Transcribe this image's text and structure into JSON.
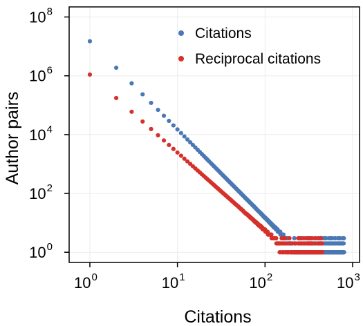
{
  "chart_data": {
    "type": "scatter",
    "title": "",
    "xlabel": "Citations",
    "ylabel": "Author pairs",
    "xscale": "log",
    "yscale": "log",
    "xlim": [
      0.58,
      1200
    ],
    "ylim": [
      0.45,
      220000000.0
    ],
    "xticks": [
      {
        "base": "10",
        "exp": "0",
        "value": 1
      },
      {
        "base": "10",
        "exp": "1",
        "value": 10
      },
      {
        "base": "10",
        "exp": "2",
        "value": 100
      },
      {
        "base": "10",
        "exp": "3",
        "value": 1000
      }
    ],
    "yticks": [
      {
        "base": "10",
        "exp": "0",
        "value": 1
      },
      {
        "base": "10",
        "exp": "2",
        "value": 100
      },
      {
        "base": "10",
        "exp": "4",
        "value": 10000
      },
      {
        "base": "10",
        "exp": "6",
        "value": 1000000
      },
      {
        "base": "10",
        "exp": "8",
        "value": 100000000
      }
    ],
    "grid": true,
    "legend_position": "top-right",
    "series": [
      {
        "name": "Citations",
        "color": "#4a78b5",
        "model": {
          "c": 15000000,
          "k": 3.0
        },
        "x_range": [
          1,
          800
        ]
      },
      {
        "name": "Reciprocal citations",
        "color": "#d6302b",
        "model": {
          "c": 1100000,
          "k": 2.65
        },
        "x_range": [
          1,
          450
        ]
      }
    ]
  }
}
